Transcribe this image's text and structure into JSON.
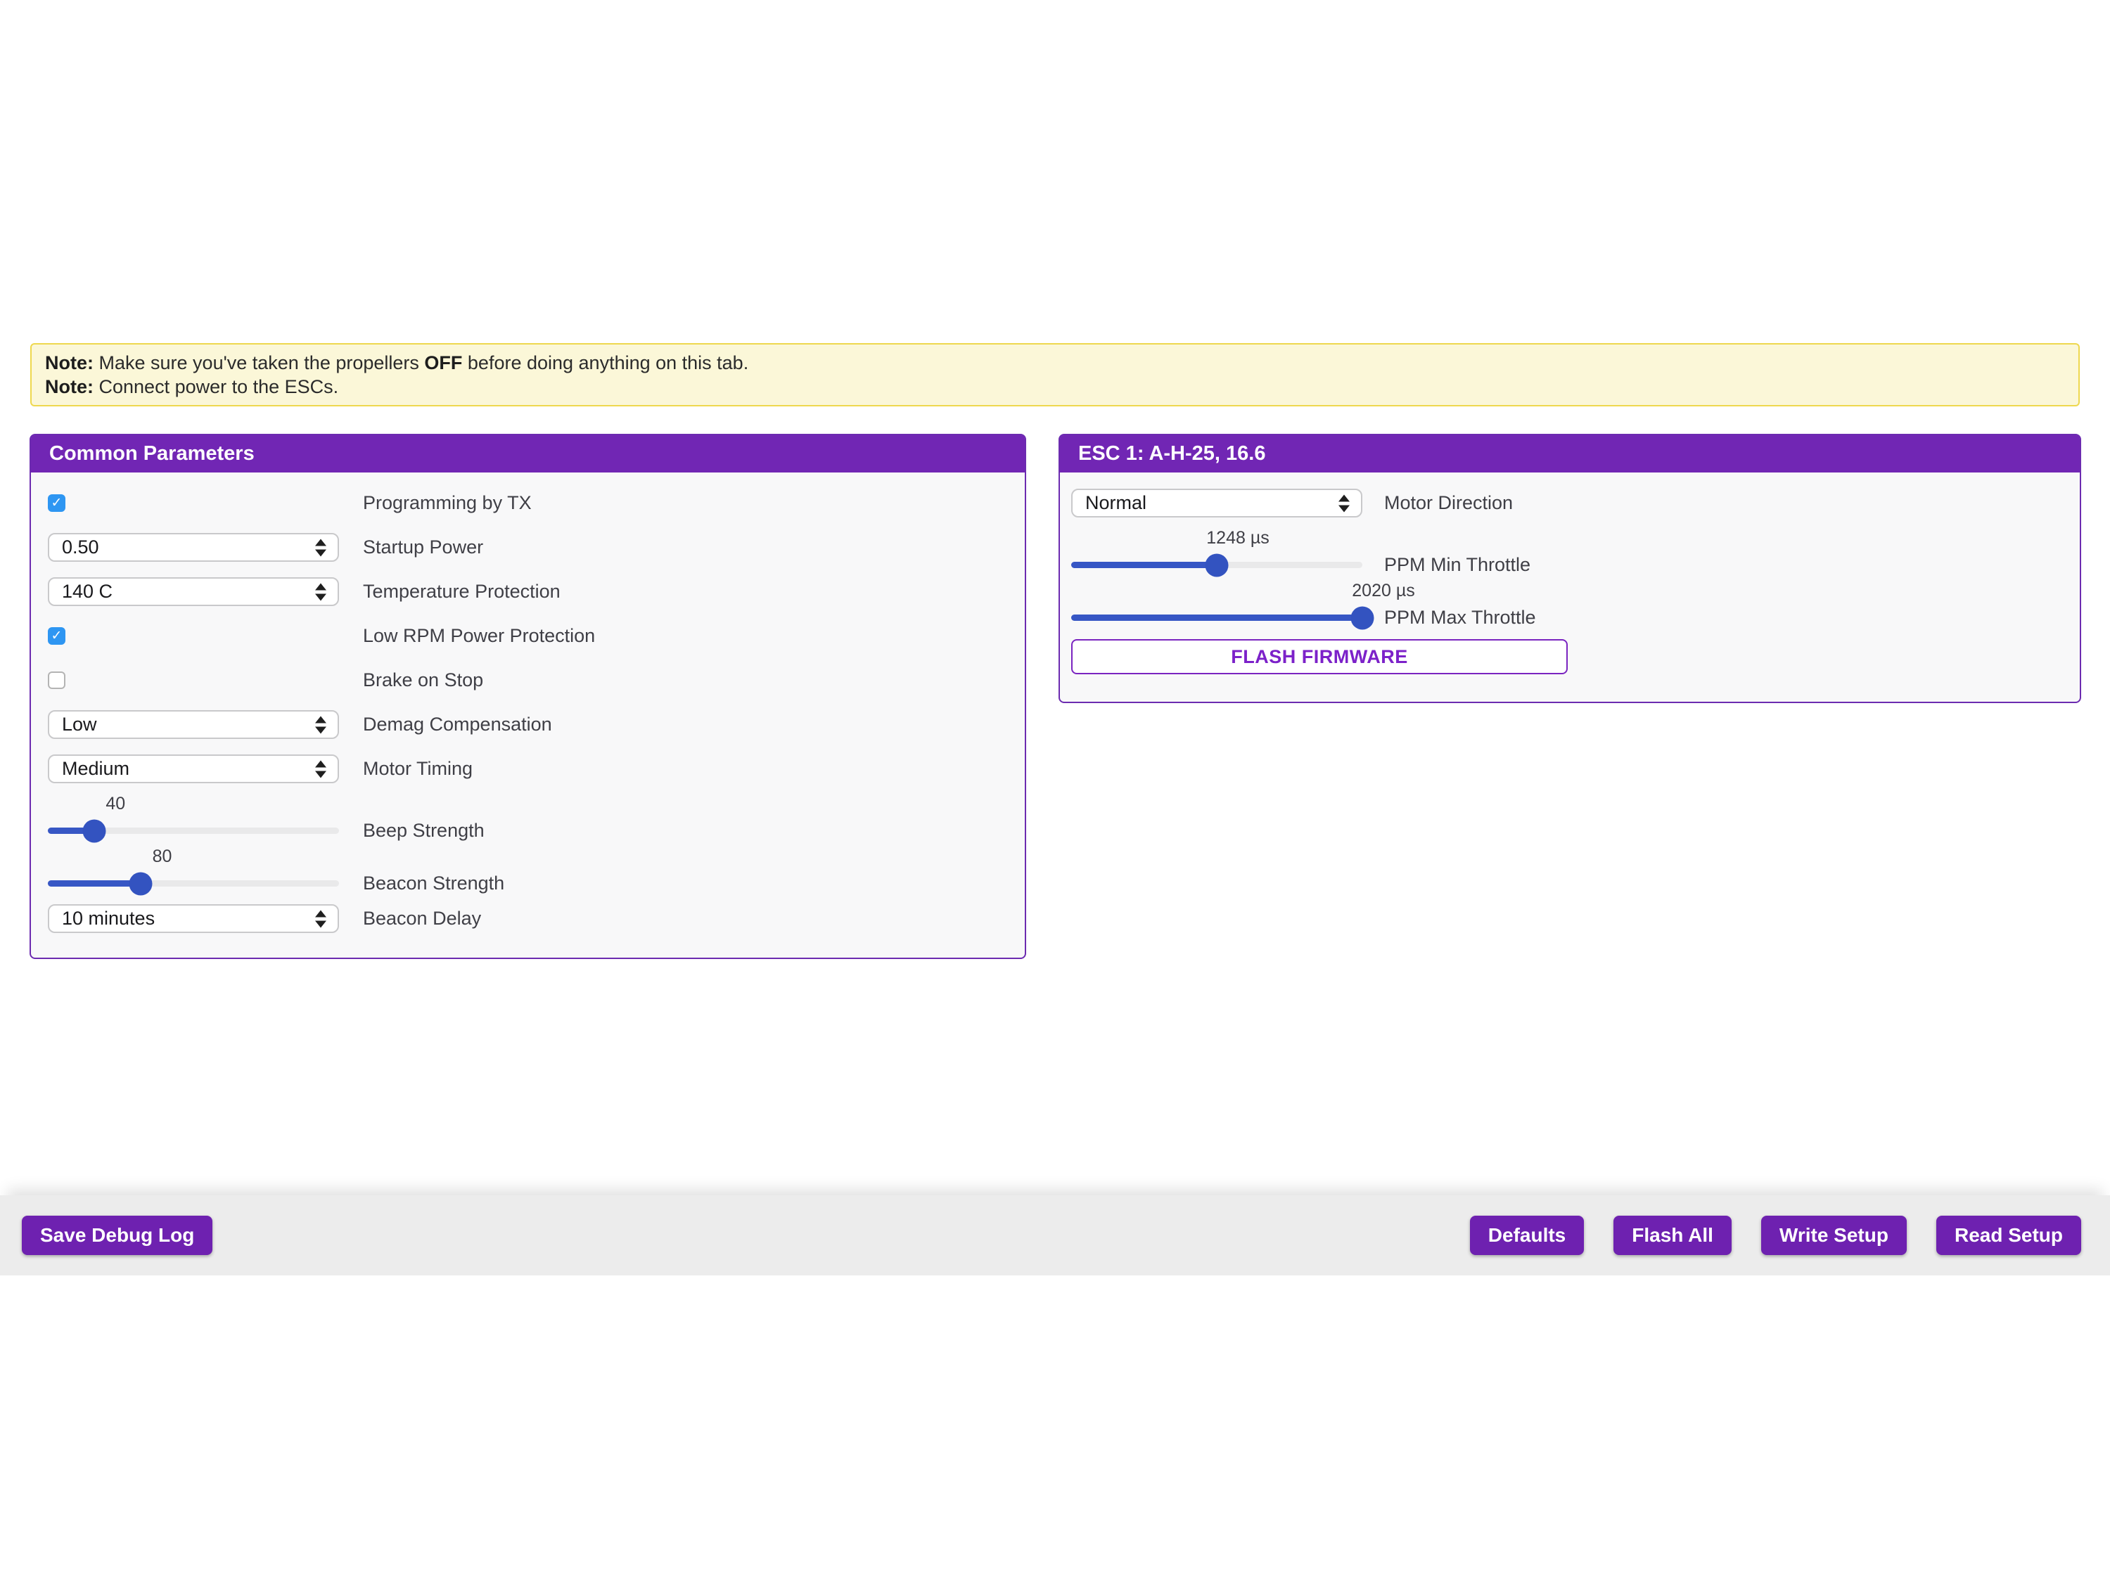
{
  "note_banner": {
    "line1": {
      "label": "Note:",
      "text_before": " Make sure you've taken the propellers ",
      "emphasis": "OFF",
      "text_after": " before doing anything on this tab."
    },
    "line2": {
      "label": "Note:",
      "text": " Connect power to the ESCs."
    }
  },
  "common_parameters": {
    "title": "Common Parameters",
    "rows": [
      {
        "type": "checkbox",
        "checked": true,
        "label": "Programming by TX"
      },
      {
        "type": "select",
        "value": "0.50",
        "label": "Startup Power"
      },
      {
        "type": "select",
        "value": "140 C",
        "label": "Temperature Protection"
      },
      {
        "type": "checkbox",
        "checked": true,
        "label": "Low RPM Power Protection"
      },
      {
        "type": "checkbox",
        "checked": false,
        "label": "Brake on Stop"
      },
      {
        "type": "select",
        "value": "Low",
        "label": "Demag Compensation"
      },
      {
        "type": "select",
        "value": "Medium",
        "label": "Motor Timing"
      },
      {
        "type": "slider",
        "value": "40",
        "percent": 16,
        "label": "Beep Strength"
      },
      {
        "type": "slider",
        "value": "80",
        "percent": 32,
        "label": "Beacon Strength"
      },
      {
        "type": "select",
        "value": "10 minutes",
        "label": "Beacon Delay"
      }
    ]
  },
  "esc1": {
    "title": "ESC 1: A-H-25, 16.6",
    "rows": [
      {
        "type": "select",
        "value": "Normal",
        "percent": 0,
        "label": "Motor Direction"
      },
      {
        "type": "slider",
        "value": "1248 µs",
        "percent": 50,
        "label": "PPM Min Throttle"
      },
      {
        "type": "slider",
        "value": "2020 µs",
        "percent": 100,
        "label": "PPM Max Throttle"
      }
    ],
    "flash_button_label": "FLASH FIRMWARE"
  },
  "footer": {
    "save_debug_label": "Save Debug Log",
    "defaults_label": "Defaults",
    "flash_all_label": "Flash All",
    "write_setup_label": "Write Setup",
    "read_setup_label": "Read Setup"
  },
  "colors": {
    "accent_purple": "#7126b4",
    "button_purple": "#6e21b0",
    "flash_text_purple": "#7c21c9",
    "checkbox_blue": "#2e96f2",
    "slider_blue": "#3353c0",
    "note_bg": "#fbf7d8",
    "note_border": "#eed84e",
    "footer_bg": "#ececec",
    "panel_body_bg": "#f8f8f9"
  }
}
